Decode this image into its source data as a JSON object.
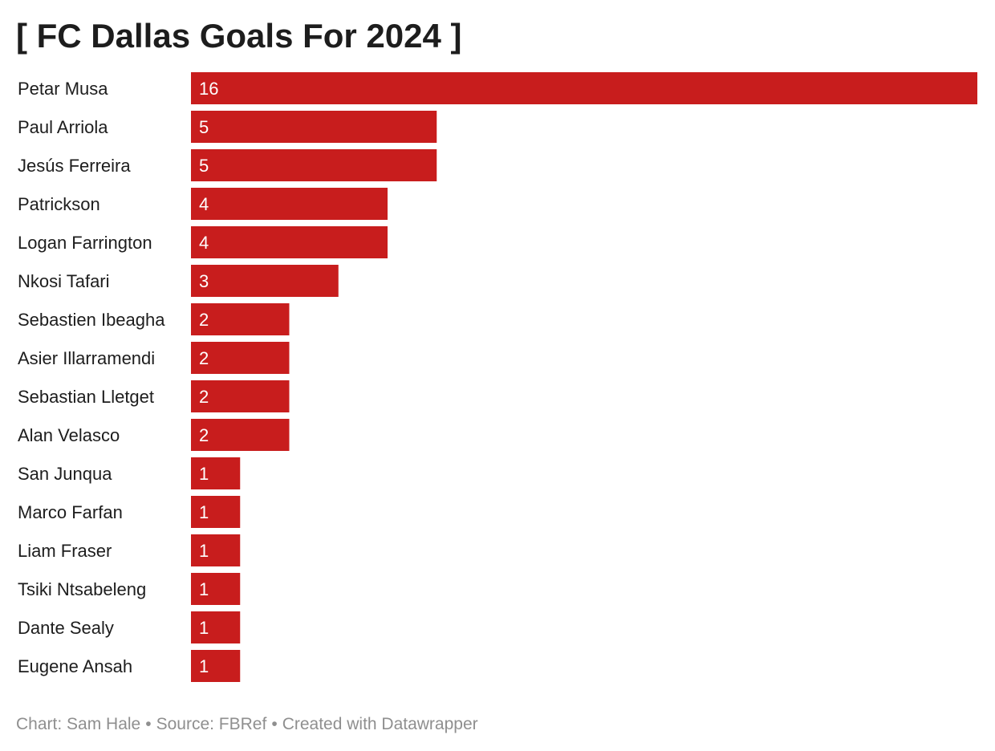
{
  "title": "[ FC Dallas Goals For 2024 ]",
  "colors": {
    "bar": "#c81d1d",
    "bar_label": "#ffffff",
    "category_label": "#1d1d1d",
    "footer": "#8f8f8f"
  },
  "chart_data": {
    "type": "bar",
    "orientation": "horizontal",
    "title": "[ FC Dallas Goals For 2024 ]",
    "categories": [
      "Petar Musa",
      "Paul Arriola",
      "Jesús Ferreira",
      "Patrickson",
      "Logan Farrington",
      "Nkosi Tafari",
      "Sebastien Ibeagha",
      "Asier Illarramendi",
      "Sebastian Lletget",
      "Alan Velasco",
      "San Junqua",
      "Marco Farfan",
      "Liam Fraser",
      "Tsiki Ntsabeleng",
      "Dante Sealy",
      "Eugene Ansah"
    ],
    "values": [
      16,
      5,
      5,
      4,
      4,
      3,
      2,
      2,
      2,
      2,
      1,
      1,
      1,
      1,
      1,
      1
    ],
    "xlim": [
      0,
      16
    ],
    "grid": false,
    "legend": "none",
    "data_labels": "inside-left"
  },
  "footer": {
    "chart_credit": "Chart: Sam Hale",
    "source": "Source: FBRef",
    "tool": "Created with Datawrapper",
    "separator": "•"
  }
}
